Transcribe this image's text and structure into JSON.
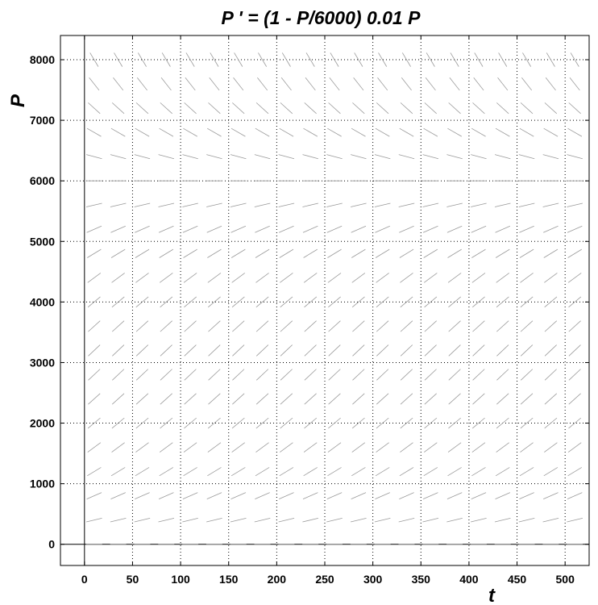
{
  "chart_data": {
    "type": "slope_field",
    "title": "P ' = (1 - P/6000) 0.01 P",
    "xlabel": "t",
    "ylabel": "P",
    "equation": {
      "r": 0.01,
      "K": 6000
    },
    "xlim": [
      -25,
      525
    ],
    "ylim": [
      -350,
      8400
    ],
    "xticks": [
      0,
      50,
      100,
      150,
      200,
      250,
      300,
      350,
      400,
      450,
      500
    ],
    "yticks": [
      0,
      1000,
      2000,
      3000,
      4000,
      5000,
      6000,
      7000,
      8000
    ],
    "grid": true,
    "grid_style": "dotted",
    "zero_lines": true,
    "field_t": [
      0,
      25,
      50,
      75,
      100,
      125,
      150,
      175,
      200,
      225,
      250,
      275,
      300,
      325,
      350,
      375,
      400,
      425,
      450,
      475,
      500
    ],
    "field_P": [
      0,
      400,
      800,
      1200,
      1600,
      2000,
      2400,
      2800,
      3200,
      3600,
      4000,
      4400,
      4800,
      5200,
      5600,
      6000,
      6400,
      6800,
      7200,
      7600,
      8000
    ],
    "colors": {
      "field": "#9a9a9a",
      "axes": "#000000",
      "grid": "#000000"
    }
  }
}
